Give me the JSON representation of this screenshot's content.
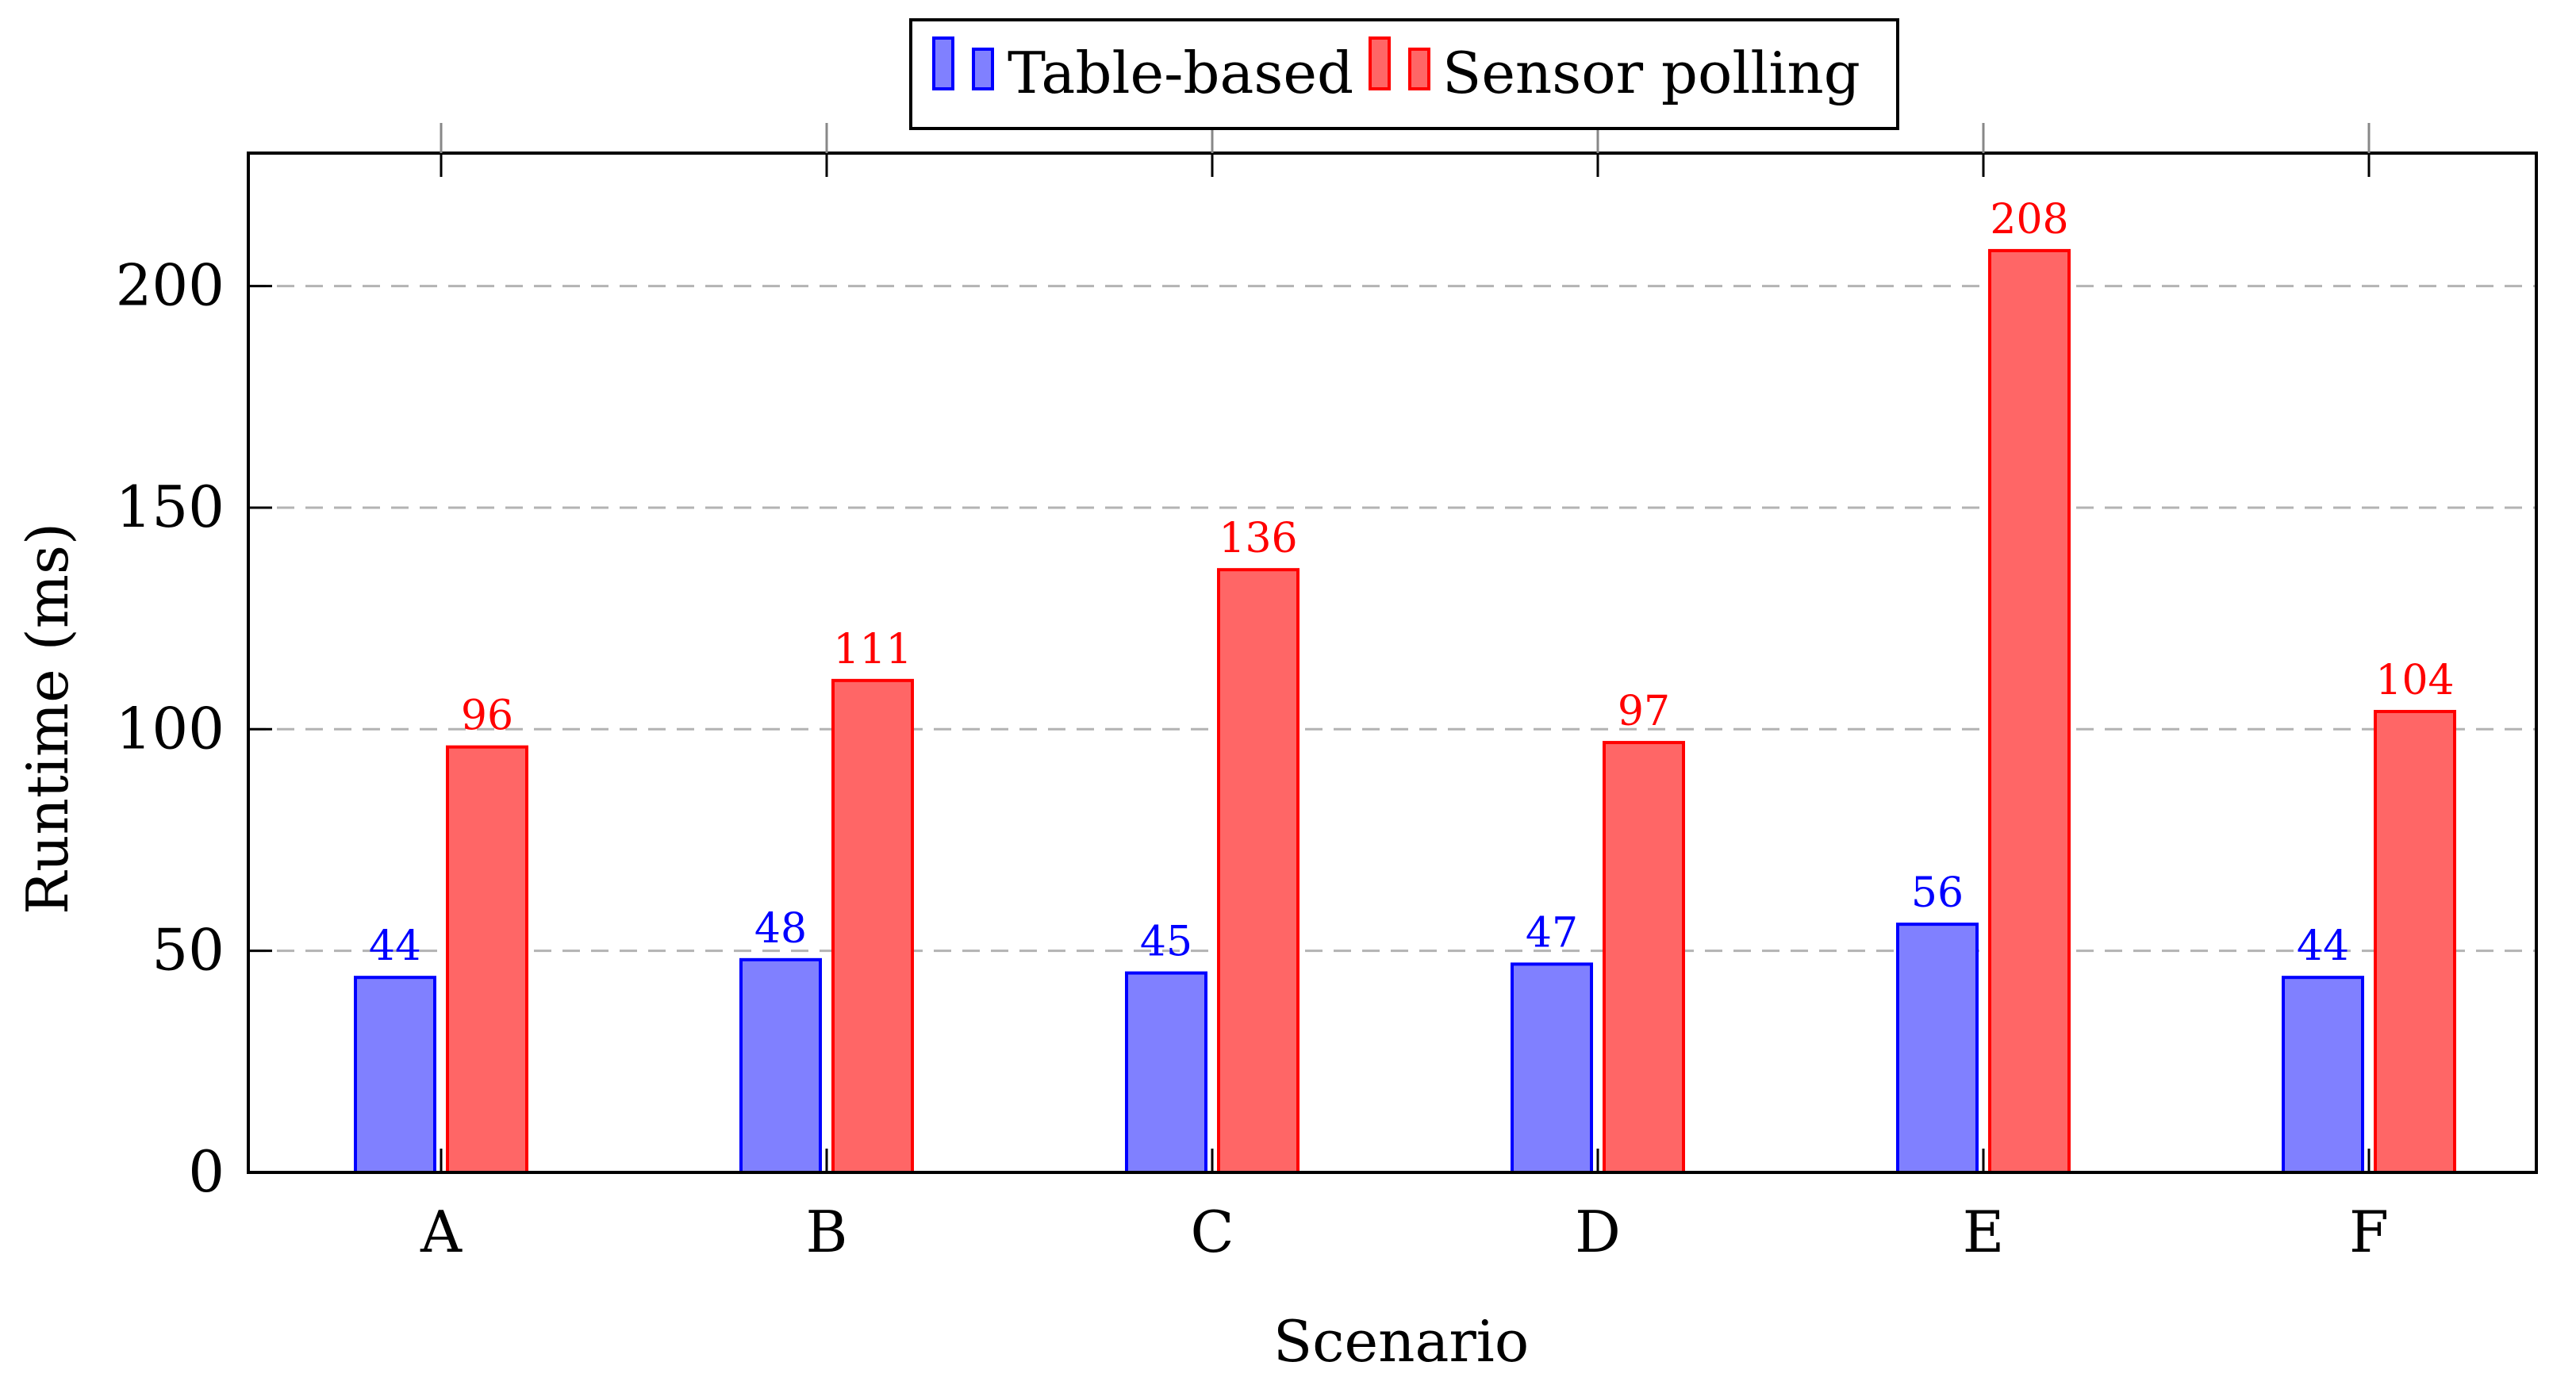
{
  "chart_data": {
    "type": "bar",
    "xlabel": "Scenario",
    "ylabel": "Runtime (ms)",
    "categories": [
      "A",
      "B",
      "C",
      "D",
      "E",
      "F"
    ],
    "ylim": [
      0,
      230
    ],
    "yticks": [
      0,
      50,
      100,
      150,
      200
    ],
    "grid": "horizontal-dashed",
    "legend_position": "top-center",
    "series": [
      {
        "name": "Table-based",
        "values": [
          44,
          48,
          45,
          47,
          56,
          44
        ],
        "fill": "#8080ff",
        "stroke": "#0000ff",
        "label_color": "#0000ff"
      },
      {
        "name": "Sensor polling",
        "values": [
          96,
          111,
          136,
          97,
          208,
          104
        ],
        "fill": "#ff6666",
        "stroke": "#ff0000",
        "label_color": "#ff0000"
      }
    ]
  }
}
